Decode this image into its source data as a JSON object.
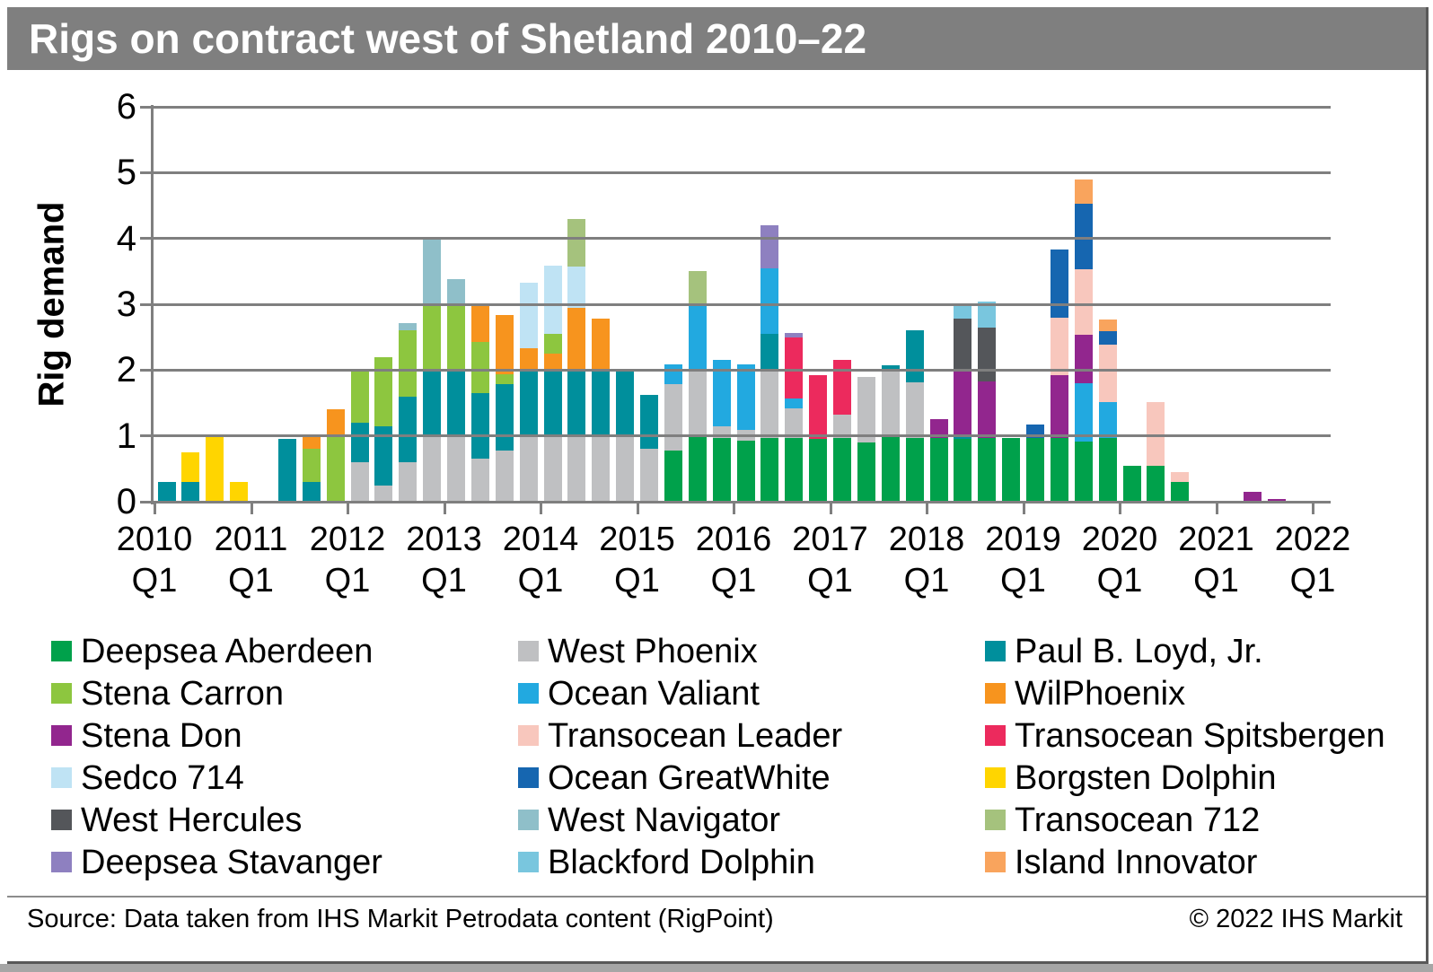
{
  "footer": {
    "source": "Source: Data taken from IHS Markit Petrodata content (RigPoint)",
    "copyright": "© 2022 IHS Markit"
  },
  "chart_data": {
    "type": "bar",
    "stacked": true,
    "title": "Rigs on contract west of Shetland 2010–22",
    "xlabel": "",
    "ylabel": "Rig demand",
    "ylim": [
      0,
      6
    ],
    "yticks": [
      0,
      1,
      2,
      3,
      4,
      5,
      6
    ],
    "grid": true,
    "x_axis": {
      "years": [
        "2010",
        "2011",
        "2012",
        "2013",
        "2014",
        "2015",
        "2016",
        "2017",
        "2018",
        "2019",
        "2020",
        "2021",
        "2022"
      ],
      "quarter_label": "Q1"
    },
    "series": [
      {
        "name": "Deepsea Aberdeen",
        "color": "#00A14B"
      },
      {
        "name": "West Phoenix",
        "color": "#BFC0C2"
      },
      {
        "name": "Paul B. Loyd, Jr.",
        "color": "#008F9C"
      },
      {
        "name": "Stena Carron",
        "color": "#8DC63F"
      },
      {
        "name": "Ocean Valiant",
        "color": "#22A9E0"
      },
      {
        "name": "WilPhoenix",
        "color": "#F7941E"
      },
      {
        "name": "Stena Don",
        "color": "#92268E"
      },
      {
        "name": "Transocean Leader",
        "color": "#F8C7BD"
      },
      {
        "name": "Transocean Spitsbergen",
        "color": "#EC2A5D"
      },
      {
        "name": "Sedco 714",
        "color": "#BFE3F4"
      },
      {
        "name": "Ocean GreatWhite",
        "color": "#1666B0"
      },
      {
        "name": "Borgsten Dolphin",
        "color": "#FFD500"
      },
      {
        "name": "West Hercules",
        "color": "#54565A"
      },
      {
        "name": "West Navigator",
        "color": "#8FBFC9"
      },
      {
        "name": "Transocean 712",
        "color": "#A5C27D"
      },
      {
        "name": "Deepsea Stavanger",
        "color": "#8E80C0"
      },
      {
        "name": "Blackford Dolphin",
        "color": "#79C6DE"
      },
      {
        "name": "Island Innovator",
        "color": "#F9A45D"
      }
    ],
    "legend": {
      "position": "bottom",
      "columns": [
        [
          "Deepsea Aberdeen",
          "Stena Carron",
          "Stena Don",
          "Sedco 714",
          "West Hercules",
          "Deepsea Stavanger"
        ],
        [
          "West Phoenix",
          "Ocean Valiant",
          "Transocean Leader",
          "Ocean GreatWhite",
          "West Navigator",
          "Blackford Dolphin"
        ],
        [
          "Paul B. Loyd, Jr.",
          "WilPhoenix",
          "Transocean Spitsbergen",
          "Borgsten Dolphin",
          "Transocean 712",
          "Island Innovator"
        ]
      ]
    },
    "bars": [
      {
        "quarter": "2010 Q1",
        "stack": [
          [
            "Paul B. Loyd, Jr.",
            0.3
          ]
        ]
      },
      {
        "quarter": "2010 Q2",
        "stack": [
          [
            "Paul B. Loyd, Jr.",
            0.3
          ],
          [
            "Borgsten Dolphin",
            0.45
          ]
        ]
      },
      {
        "quarter": "2010 Q3",
        "stack": [
          [
            "Borgsten Dolphin",
            1.0
          ]
        ]
      },
      {
        "quarter": "2010 Q4",
        "stack": [
          [
            "Borgsten Dolphin",
            0.3
          ]
        ]
      },
      {
        "quarter": "2011 Q2",
        "stack": [
          [
            "Paul B. Loyd, Jr.",
            0.95
          ]
        ]
      },
      {
        "quarter": "2011 Q3",
        "stack": [
          [
            "Paul B. Loyd, Jr.",
            0.3
          ],
          [
            "Stena Carron",
            0.5
          ],
          [
            "WilPhoenix",
            0.2
          ]
        ]
      },
      {
        "quarter": "2011 Q4",
        "stack": [
          [
            "Stena Carron",
            1.0
          ],
          [
            "WilPhoenix",
            0.4
          ]
        ]
      },
      {
        "quarter": "2012 Q1",
        "stack": [
          [
            "West Phoenix",
            0.6
          ],
          [
            "Paul B. Loyd, Jr.",
            0.6
          ],
          [
            "Stena Carron",
            0.8
          ]
        ]
      },
      {
        "quarter": "2012 Q2",
        "stack": [
          [
            "West Phoenix",
            0.25
          ],
          [
            "Paul B. Loyd, Jr.",
            0.9
          ],
          [
            "Stena Carron",
            1.05
          ]
        ]
      },
      {
        "quarter": "2012 Q3",
        "stack": [
          [
            "West Phoenix",
            0.6
          ],
          [
            "Paul B. Loyd, Jr.",
            1.0
          ],
          [
            "Stena Carron",
            1.0
          ],
          [
            "West Navigator",
            0.12
          ]
        ]
      },
      {
        "quarter": "2012 Q4",
        "stack": [
          [
            "West Phoenix",
            1.0
          ],
          [
            "Paul B. Loyd, Jr.",
            1.0
          ],
          [
            "Stena Carron",
            1.0
          ],
          [
            "West Navigator",
            1.0
          ]
        ]
      },
      {
        "quarter": "2013 Q1",
        "stack": [
          [
            "West Phoenix",
            1.0
          ],
          [
            "Paul B. Loyd, Jr.",
            1.0
          ],
          [
            "Stena Carron",
            1.0
          ],
          [
            "West Navigator",
            0.38
          ]
        ]
      },
      {
        "quarter": "2013 Q2",
        "stack": [
          [
            "West Phoenix",
            0.65
          ],
          [
            "Paul B. Loyd, Jr.",
            1.0
          ],
          [
            "Stena Carron",
            0.78
          ],
          [
            "WilPhoenix",
            0.57
          ]
        ]
      },
      {
        "quarter": "2013 Q3",
        "stack": [
          [
            "West Phoenix",
            0.78
          ],
          [
            "Paul B. Loyd, Jr.",
            1.0
          ],
          [
            "Stena Carron",
            0.15
          ],
          [
            "WilPhoenix",
            0.9
          ]
        ]
      },
      {
        "quarter": "2013 Q4",
        "stack": [
          [
            "West Phoenix",
            1.0
          ],
          [
            "Paul B. Loyd, Jr.",
            1.0
          ],
          [
            "WilPhoenix",
            0.33
          ],
          [
            "Sedco 714",
            1.0
          ]
        ]
      },
      {
        "quarter": "2014 Q1",
        "stack": [
          [
            "West Phoenix",
            1.0
          ],
          [
            "Paul B. Loyd, Jr.",
            1.0
          ],
          [
            "WilPhoenix",
            0.25
          ],
          [
            "Stena Carron",
            0.3
          ],
          [
            "Sedco 714",
            1.03
          ]
        ]
      },
      {
        "quarter": "2014 Q2",
        "stack": [
          [
            "West Phoenix",
            1.0
          ],
          [
            "Paul B. Loyd, Jr.",
            1.0
          ],
          [
            "WilPhoenix",
            0.95
          ],
          [
            "Sedco 714",
            0.62
          ],
          [
            "Transocean 712",
            0.72
          ]
        ]
      },
      {
        "quarter": "2014 Q3",
        "stack": [
          [
            "West Phoenix",
            1.0
          ],
          [
            "Paul B. Loyd, Jr.",
            1.0
          ],
          [
            "WilPhoenix",
            0.78
          ]
        ]
      },
      {
        "quarter": "2014 Q4",
        "stack": [
          [
            "West Phoenix",
            1.0
          ],
          [
            "Paul B. Loyd, Jr.",
            1.0
          ]
        ]
      },
      {
        "quarter": "2015 Q1",
        "stack": [
          [
            "West Phoenix",
            0.8
          ],
          [
            "Paul B. Loyd, Jr.",
            0.82
          ]
        ]
      },
      {
        "quarter": "2015 Q2",
        "stack": [
          [
            "Deepsea Aberdeen",
            0.78
          ],
          [
            "West Phoenix",
            1.0
          ],
          [
            "Ocean Valiant",
            0.3
          ]
        ]
      },
      {
        "quarter": "2015 Q3",
        "stack": [
          [
            "Deepsea Aberdeen",
            1.0
          ],
          [
            "West Phoenix",
            1.0
          ],
          [
            "Ocean Valiant",
            1.0
          ],
          [
            "Transocean 712",
            0.5
          ]
        ]
      },
      {
        "quarter": "2015 Q4",
        "stack": [
          [
            "Deepsea Aberdeen",
            0.97
          ],
          [
            "West Phoenix",
            0.18
          ],
          [
            "Ocean Valiant",
            1.0
          ]
        ]
      },
      {
        "quarter": "2016 Q1",
        "stack": [
          [
            "Deepsea Aberdeen",
            0.93
          ],
          [
            "West Phoenix",
            0.16
          ],
          [
            "Ocean Valiant",
            1.0
          ]
        ]
      },
      {
        "quarter": "2016 Q2",
        "stack": [
          [
            "Deepsea Aberdeen",
            0.97
          ],
          [
            "West Phoenix",
            1.03
          ],
          [
            "Paul B. Loyd, Jr.",
            0.55
          ],
          [
            "Ocean Valiant",
            1.0
          ],
          [
            "Deepsea Stavanger",
            0.65
          ]
        ]
      },
      {
        "quarter": "2016 Q3",
        "stack": [
          [
            "Deepsea Aberdeen",
            0.97
          ],
          [
            "West Phoenix",
            0.45
          ],
          [
            "Ocean Valiant",
            0.15
          ],
          [
            "Transocean Spitsbergen",
            0.92
          ],
          [
            "Deepsea Stavanger",
            0.08
          ]
        ]
      },
      {
        "quarter": "2016 Q4",
        "stack": [
          [
            "Deepsea Aberdeen",
            0.95
          ],
          [
            "Transocean Spitsbergen",
            0.97
          ]
        ]
      },
      {
        "quarter": "2017 Q1",
        "stack": [
          [
            "Deepsea Aberdeen",
            0.97
          ],
          [
            "West Phoenix",
            0.35
          ],
          [
            "Transocean Spitsbergen",
            0.83
          ]
        ]
      },
      {
        "quarter": "2017 Q2",
        "stack": [
          [
            "Deepsea Aberdeen",
            0.9
          ],
          [
            "West Phoenix",
            1.0
          ]
        ]
      },
      {
        "quarter": "2017 Q3",
        "stack": [
          [
            "Deepsea Aberdeen",
            1.0
          ],
          [
            "West Phoenix",
            1.0
          ],
          [
            "Paul B. Loyd, Jr.",
            0.07
          ]
        ]
      },
      {
        "quarter": "2017 Q4",
        "stack": [
          [
            "Deepsea Aberdeen",
            0.97
          ],
          [
            "West Phoenix",
            0.85
          ],
          [
            "Paul B. Loyd, Jr.",
            0.78
          ]
        ]
      },
      {
        "quarter": "2018 Q1",
        "stack": [
          [
            "Deepsea Aberdeen",
            0.97
          ],
          [
            "Stena Don",
            0.28
          ]
        ]
      },
      {
        "quarter": "2018 Q2",
        "stack": [
          [
            "Deepsea Aberdeen",
            0.95
          ],
          [
            "Paul B. Loyd, Jr.",
            0.06
          ],
          [
            "Stena Don",
            1.0
          ],
          [
            "West Hercules",
            0.77
          ],
          [
            "Blackford Dolphin",
            0.22
          ]
        ]
      },
      {
        "quarter": "2018 Q3",
        "stack": [
          [
            "Deepsea Aberdeen",
            0.97
          ],
          [
            "Stena Don",
            0.86
          ],
          [
            "West Hercules",
            0.81
          ],
          [
            "Blackford Dolphin",
            0.4
          ]
        ]
      },
      {
        "quarter": "2018 Q4",
        "stack": [
          [
            "Deepsea Aberdeen",
            0.97
          ]
        ]
      },
      {
        "quarter": "2019 Q1",
        "stack": [
          [
            "Deepsea Aberdeen",
            0.97
          ],
          [
            "Ocean GreatWhite",
            0.2
          ]
        ]
      },
      {
        "quarter": "2019 Q2",
        "stack": [
          [
            "Deepsea Aberdeen",
            0.97
          ],
          [
            "Stena Don",
            0.95
          ],
          [
            "Transocean Leader",
            0.88
          ],
          [
            "Ocean GreatWhite",
            1.03
          ]
        ]
      },
      {
        "quarter": "2019 Q3",
        "stack": [
          [
            "Deepsea Aberdeen",
            0.91
          ],
          [
            "Ocean Valiant",
            0.89
          ],
          [
            "Stena Don",
            0.74
          ],
          [
            "Transocean Leader",
            0.99
          ],
          [
            "Ocean GreatWhite",
            1.0
          ],
          [
            "Island Innovator",
            0.36
          ]
        ]
      },
      {
        "quarter": "2019 Q4",
        "stack": [
          [
            "Deepsea Aberdeen",
            0.97
          ],
          [
            "Ocean Valiant",
            0.54
          ],
          [
            "Transocean Leader",
            0.87
          ],
          [
            "Ocean GreatWhite",
            0.21
          ],
          [
            "Island Innovator",
            0.18
          ]
        ]
      },
      {
        "quarter": "2020 Q1",
        "stack": [
          [
            "Deepsea Aberdeen",
            0.55
          ]
        ]
      },
      {
        "quarter": "2020 Q2",
        "stack": [
          [
            "Deepsea Aberdeen",
            0.55
          ],
          [
            "Transocean Leader",
            0.97
          ]
        ]
      },
      {
        "quarter": "2020 Q3",
        "stack": [
          [
            "Deepsea Aberdeen",
            0.3
          ],
          [
            "Transocean Leader",
            0.15
          ]
        ]
      },
      {
        "quarter": "2021 Q2",
        "stack": [
          [
            "Stena Don",
            0.15
          ]
        ]
      },
      {
        "quarter": "2021 Q3",
        "stack": [
          [
            "Stena Don",
            0.04
          ]
        ]
      }
    ]
  }
}
